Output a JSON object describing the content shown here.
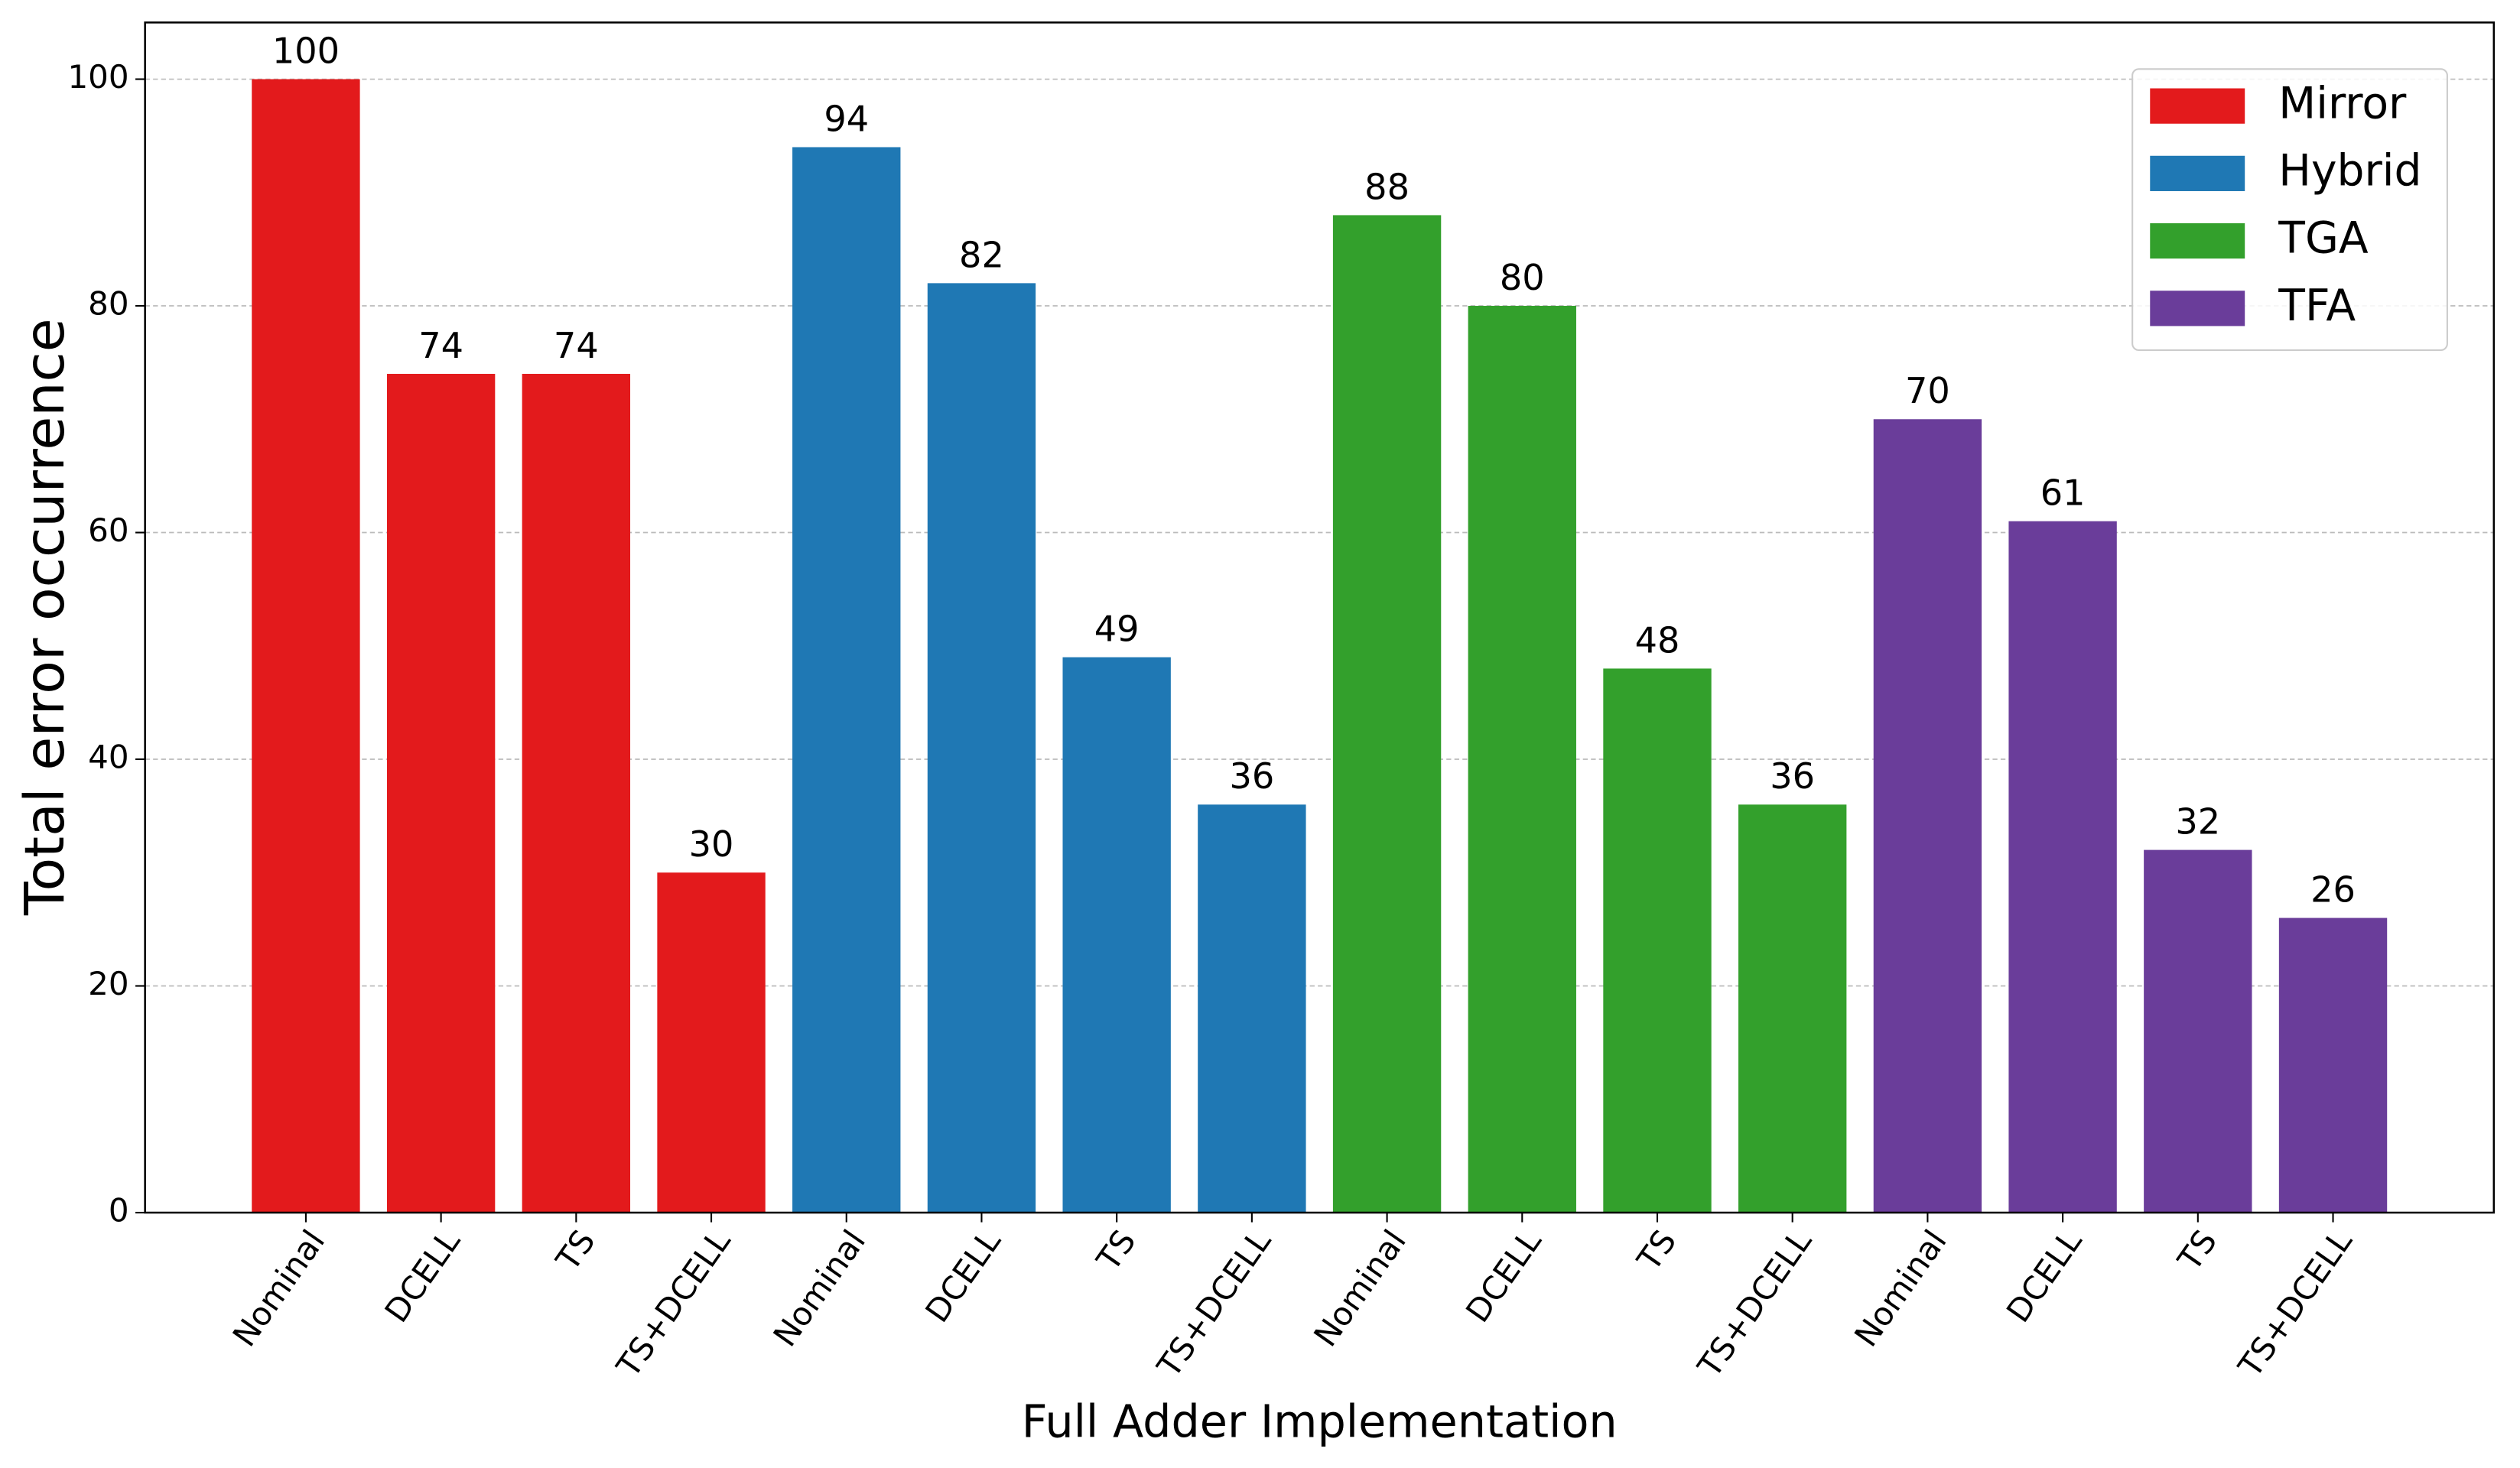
{
  "chart_data": {
    "type": "bar",
    "xlabel": "Full Adder Implementation",
    "ylabel": "Total error occurrence",
    "categories": [
      "Nominal",
      "DCELL",
      "TS",
      "TS+DCELL",
      "Nominal",
      "DCELL",
      "TS",
      "TS+DCELL",
      "Nominal",
      "DCELL",
      "TS",
      "TS+DCELL",
      "Nominal",
      "DCELL",
      "TS",
      "TS+DCELL"
    ],
    "series": [
      {
        "name": "Mirror",
        "color": "#e31a1c",
        "values": [
          100,
          74,
          74,
          30,
          null,
          null,
          null,
          null,
          null,
          null,
          null,
          null,
          null,
          null,
          null,
          null
        ]
      },
      {
        "name": "Hybrid",
        "color": "#1f78b4",
        "values": [
          null,
          null,
          null,
          null,
          94,
          82,
          49,
          36,
          null,
          null,
          null,
          null,
          null,
          null,
          null,
          null
        ]
      },
      {
        "name": "TGA",
        "color": "#33a02c",
        "values": [
          null,
          null,
          null,
          null,
          null,
          null,
          null,
          null,
          88,
          80,
          48,
          36,
          null,
          null,
          null,
          null
        ]
      },
      {
        "name": "TFA",
        "color": "#6a3d9a",
        "values": [
          null,
          null,
          null,
          null,
          null,
          null,
          null,
          null,
          null,
          null,
          null,
          null,
          70,
          61,
          32,
          26
        ]
      }
    ],
    "ylim": [
      0,
      105
    ],
    "yticks": [
      0,
      20,
      40,
      60,
      80,
      100
    ],
    "grid": true,
    "legend": "upper right"
  }
}
